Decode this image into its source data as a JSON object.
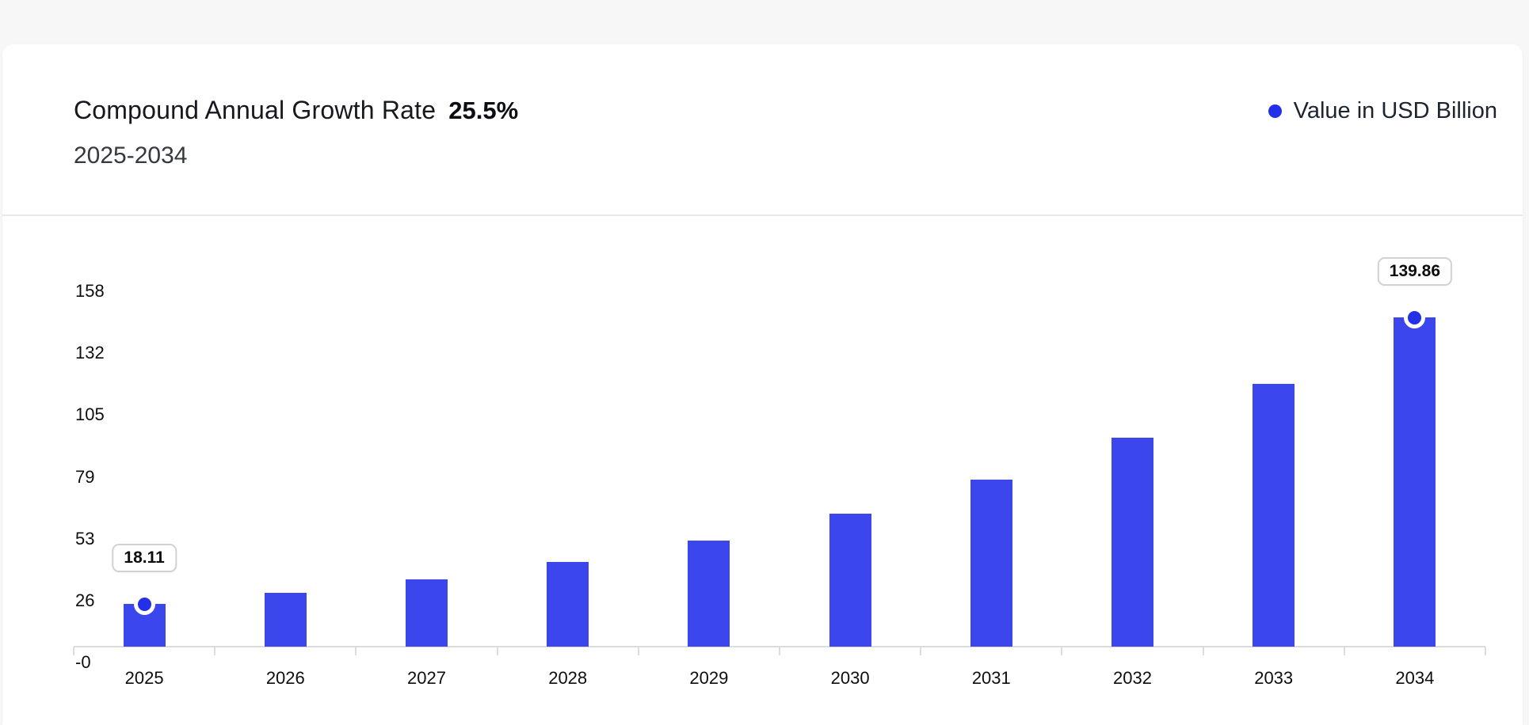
{
  "header": {
    "title": "Compound Annual Growth Rate",
    "cagr_value": "25.5%",
    "subtitle": "2025-2034",
    "legend_label": "Value in USD Billion"
  },
  "colors": {
    "bar": "#3b46ec",
    "marker": "#2231e8",
    "axis": "#dcdcdc",
    "card_background": "#ffffff",
    "page_background": "#f7f7f8"
  },
  "chart_data": {
    "type": "bar",
    "title": "Compound Annual Growth Rate 25.5%",
    "subtitle": "2025-2034",
    "categories": [
      "2025",
      "2026",
      "2027",
      "2028",
      "2029",
      "2030",
      "2031",
      "2032",
      "2033",
      "2034"
    ],
    "series": [
      {
        "name": "Value in USD Billion",
        "values": [
          18.11,
          22.73,
          28.52,
          35.8,
          44.93,
          56.38,
          70.76,
          88.8,
          111.45,
          139.86
        ]
      }
    ],
    "y_ticks": [
      "158",
      "132",
      "105",
      "79",
      "53",
      "26",
      "-0"
    ],
    "ylim": [
      0,
      158
    ],
    "grid": false,
    "legend_position": "top-right",
    "annotations": [
      {
        "category": "2025",
        "value": 18.11,
        "label": "18.11"
      },
      {
        "category": "2034",
        "value": 139.86,
        "label": "139.86"
      }
    ]
  }
}
